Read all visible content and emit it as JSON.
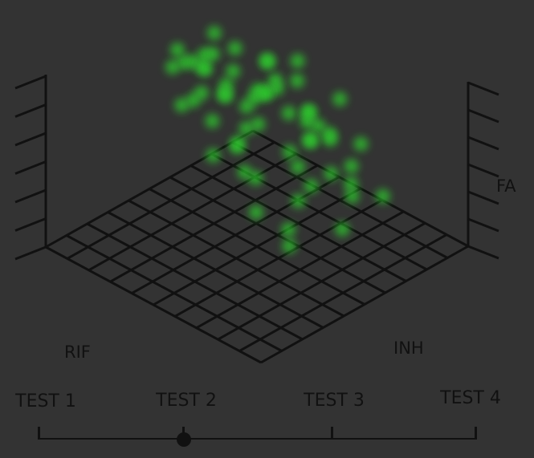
{
  "chart_data": {
    "type": "scatter",
    "title": "",
    "axes": {
      "x": "RIF",
      "y": "INH",
      "z": "FA"
    },
    "point_color": "#2ecc2e",
    "grid": true,
    "points": [
      [
        0.55,
        0.2,
        0.95
      ],
      [
        0.6,
        0.22,
        0.97
      ],
      [
        0.5,
        0.25,
        0.92
      ],
      [
        0.45,
        0.3,
        0.85
      ],
      [
        0.6,
        0.35,
        0.88
      ],
      [
        0.7,
        0.3,
        0.8
      ],
      [
        0.4,
        0.4,
        0.8
      ],
      [
        0.35,
        0.35,
        0.7
      ],
      [
        0.3,
        0.2,
        0.72
      ],
      [
        0.65,
        0.55,
        0.78
      ],
      [
        0.75,
        0.45,
        0.72
      ],
      [
        0.55,
        0.6,
        0.75
      ],
      [
        0.5,
        0.45,
        0.65
      ],
      [
        0.8,
        0.55,
        0.62
      ],
      [
        0.85,
        0.65,
        0.6
      ],
      [
        0.4,
        0.55,
        0.62
      ],
      [
        0.35,
        0.6,
        0.5
      ],
      [
        0.45,
        0.7,
        0.52
      ],
      [
        0.6,
        0.7,
        0.55
      ],
      [
        0.7,
        0.75,
        0.45
      ],
      [
        0.9,
        0.8,
        0.42
      ],
      [
        0.65,
        0.85,
        0.48
      ],
      [
        0.75,
        0.8,
        0.4
      ],
      [
        0.55,
        0.8,
        0.42
      ],
      [
        0.8,
        0.9,
        0.38
      ],
      [
        0.4,
        0.75,
        0.4
      ],
      [
        0.3,
        0.65,
        0.35
      ],
      [
        0.5,
        0.85,
        0.32
      ],
      [
        0.85,
        0.85,
        0.3
      ],
      [
        0.6,
        0.9,
        0.28
      ],
      [
        0.35,
        0.8,
        0.28
      ],
      [
        0.25,
        0.7,
        0.25
      ],
      [
        0.45,
        0.95,
        0.25
      ],
      [
        0.7,
        0.95,
        0.22
      ],
      [
        0.55,
        0.75,
        0.2
      ],
      [
        0.4,
        0.85,
        0.15
      ],
      [
        0.65,
        0.65,
        0.15
      ],
      [
        0.3,
        0.9,
        0.12
      ],
      [
        0.5,
        0.7,
        0.1
      ],
      [
        0.75,
        0.7,
        0.1
      ],
      [
        0.2,
        0.6,
        0.18
      ],
      [
        0.6,
        0.6,
        0.05
      ],
      [
        0.45,
        0.6,
        0.05
      ],
      [
        0.35,
        0.5,
        0.08
      ],
      [
        0.8,
        0.6,
        0.2
      ],
      [
        0.9,
        0.7,
        0.25
      ],
      [
        0.2,
        0.45,
        0.45
      ],
      [
        0.25,
        0.5,
        0.6
      ],
      [
        0.7,
        0.4,
        0.6
      ],
      [
        0.5,
        0.35,
        0.75
      ],
      [
        0.65,
        0.45,
        0.9
      ],
      [
        0.45,
        0.5,
        0.85
      ],
      [
        0.3,
        0.45,
        0.55
      ],
      [
        0.55,
        0.5,
        0.5
      ],
      [
        0.4,
        0.3,
        0.6
      ],
      [
        0.75,
        0.6,
        0.5
      ],
      [
        0.85,
        0.5,
        0.45
      ],
      [
        0.95,
        0.7,
        0.35
      ],
      [
        0.6,
        0.8,
        0.62
      ],
      [
        0.5,
        0.9,
        0.45
      ]
    ]
  },
  "labels": {
    "x_axis": "RIF",
    "y_axis": "INH",
    "z_axis": "FA"
  },
  "timeline": {
    "steps": [
      "TEST 1",
      "TEST 2",
      "TEST 3",
      "TEST 4"
    ],
    "selected_index": 1
  }
}
